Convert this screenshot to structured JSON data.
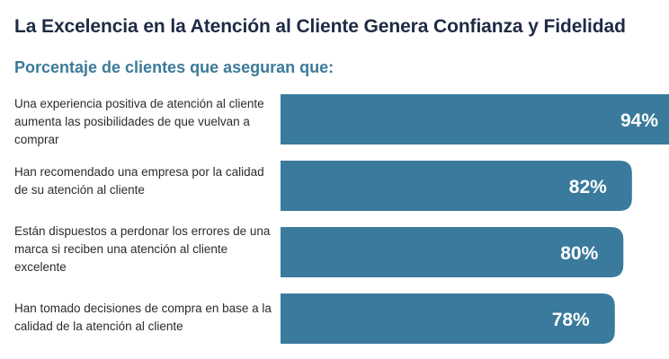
{
  "title": "La Excelencia en la Atención al Cliente Genera Confianza y Fidelidad",
  "subtitle": "Porcentaje de clientes que aseguran que:",
  "colors": {
    "bar": "#3a7a9c",
    "title": "#1f2a44",
    "subtitle": "#3c7a9a",
    "value_text": "#ffffff"
  },
  "chart_data": {
    "type": "bar",
    "orientation": "horizontal",
    "title": "La Excelencia en la Atención al Cliente Genera Confianza y Fidelidad",
    "subtitle": "Porcentaje de clientes que aseguran que:",
    "categories": [
      "Una experiencia positiva de atención al cliente aumenta las posibilidades de que vuelvan a comprar",
      "Han recomendado una empresa por la calidad de su atención al cliente",
      "Están dispuestos a perdonar los errores de una marca si reciben una atención al cliente excelente",
      "Han tomado decisiones de compra en base a la calidad de la atención al cliente"
    ],
    "values": [
      94,
      82,
      80,
      78
    ],
    "value_labels": [
      "94%",
      "82%",
      "80%",
      "78%"
    ],
    "unit": "%",
    "grid": false,
    "legend": "none"
  }
}
